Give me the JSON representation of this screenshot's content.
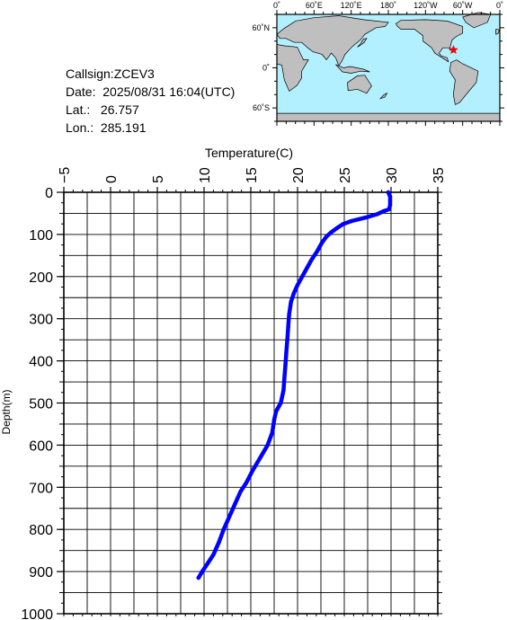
{
  "info": {
    "callsign_label": "Callsign:",
    "callsign": "ZCEV3",
    "date_label": "Date:",
    "date": "2025/08/31 16:04(UTC)",
    "lat_label": "Lat.:",
    "lat": "26.757",
    "lon_label": "Lon.:",
    "lon": "285.191"
  },
  "map": {
    "lon_ticks": [
      "0˚",
      "60˚E",
      "120˚E",
      "180˚",
      "120˚W",
      "60˚W",
      "0˚"
    ],
    "lat_ticks": [
      "60˚N",
      "0˚",
      "60˚S"
    ],
    "ocean_color": "#b3f0ff",
    "land_color": "#bfbfbf",
    "marker_color": "#ff0000",
    "marker_lat": 26.757,
    "marker_lon": 285.191
  },
  "chart_data": {
    "type": "line",
    "title": "",
    "xlabel": "Temperature(C)",
    "ylabel": "Depth(m)",
    "xlim": [
      -5,
      35
    ],
    "ylim": [
      1000,
      0
    ],
    "x_ticks": [
      -5,
      0,
      5,
      10,
      15,
      20,
      25,
      30,
      35
    ],
    "y_ticks": [
      0,
      100,
      200,
      300,
      400,
      500,
      600,
      700,
      800,
      900,
      1000
    ],
    "grid": true,
    "series": [
      {
        "color": "#0000ff",
        "points": [
          [
            29.7,
            0
          ],
          [
            29.9,
            10
          ],
          [
            29.9,
            20
          ],
          [
            29.9,
            30
          ],
          [
            29.8,
            40
          ],
          [
            29.2,
            45
          ],
          [
            28.5,
            52
          ],
          [
            27.3,
            60
          ],
          [
            25.8,
            68
          ],
          [
            24.9,
            75
          ],
          [
            24.2,
            85
          ],
          [
            23.6,
            95
          ],
          [
            23.1,
            105
          ],
          [
            22.6,
            120
          ],
          [
            22.1,
            140
          ],
          [
            21.5,
            160
          ],
          [
            21.0,
            180
          ],
          [
            20.5,
            200
          ],
          [
            20.0,
            220
          ],
          [
            19.6,
            240
          ],
          [
            19.3,
            260
          ],
          [
            19.1,
            290
          ],
          [
            19.0,
            320
          ],
          [
            18.9,
            350
          ],
          [
            18.8,
            380
          ],
          [
            18.7,
            410
          ],
          [
            18.6,
            440
          ],
          [
            18.5,
            470
          ],
          [
            18.2,
            500
          ],
          [
            17.7,
            520
          ],
          [
            17.5,
            540
          ],
          [
            17.3,
            570
          ],
          [
            16.8,
            600
          ],
          [
            16.0,
            630
          ],
          [
            15.2,
            660
          ],
          [
            14.5,
            690
          ],
          [
            13.9,
            710
          ],
          [
            13.3,
            740
          ],
          [
            12.9,
            760
          ],
          [
            12.5,
            780
          ],
          [
            12.1,
            800
          ],
          [
            11.6,
            830
          ],
          [
            11.0,
            860
          ],
          [
            10.4,
            880
          ],
          [
            9.8,
            900
          ],
          [
            9.4,
            915
          ]
        ]
      }
    ]
  }
}
